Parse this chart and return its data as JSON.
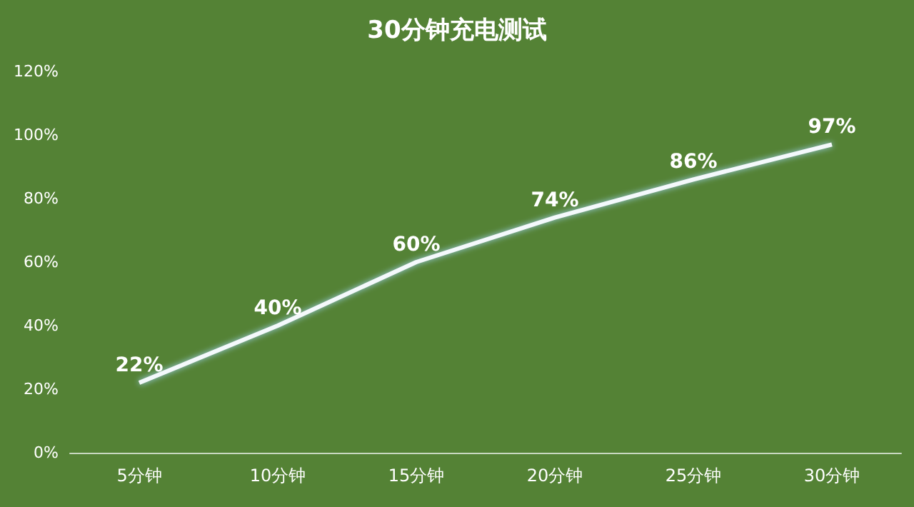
{
  "chart_data": {
    "type": "line",
    "title": "30分钟充电测试",
    "categories": [
      "5分钟",
      "10分钟",
      "15分钟",
      "20分钟",
      "25分钟",
      "30分钟"
    ],
    "series": [
      {
        "color": "#f4f9fc",
        "values": [
          22,
          40,
          60,
          74,
          86,
          97
        ],
        "value_labels": [
          "22%",
          "40%",
          "60%",
          "74%",
          "86%",
          "97%"
        ]
      }
    ],
    "ylim": [
      0,
      120
    ],
    "yticks": [
      {
        "value": 0,
        "label": "0%"
      },
      {
        "value": 20,
        "label": "20%"
      },
      {
        "value": 40,
        "label": "40%"
      },
      {
        "value": 60,
        "label": "60%"
      },
      {
        "value": 80,
        "label": "80%"
      },
      {
        "value": 100,
        "label": "100%"
      },
      {
        "value": 120,
        "label": "120%"
      }
    ],
    "grid": false,
    "marker": "none",
    "line_style": "solid"
  }
}
